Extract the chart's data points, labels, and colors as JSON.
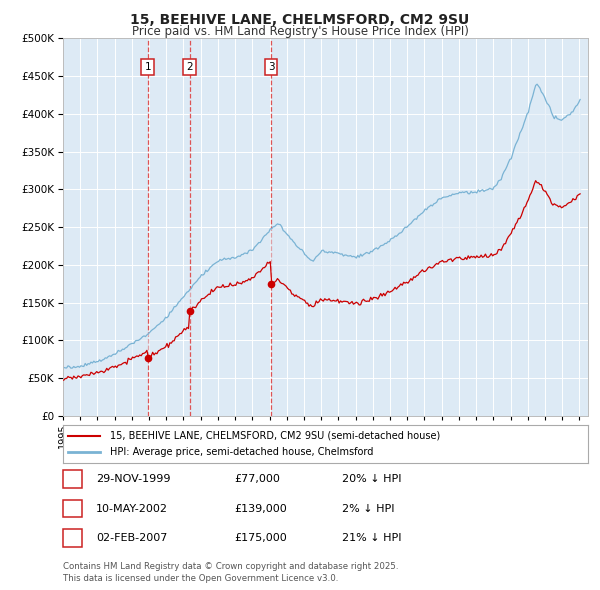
{
  "title": "15, BEEHIVE LANE, CHELMSFORD, CM2 9SU",
  "subtitle": "Price paid vs. HM Land Registry's House Price Index (HPI)",
  "legend_line1": "15, BEEHIVE LANE, CHELMSFORD, CM2 9SU (semi-detached house)",
  "legend_line2": "HPI: Average price, semi-detached house, Chelmsford",
  "footer": "Contains HM Land Registry data © Crown copyright and database right 2025.\nThis data is licensed under the Open Government Licence v3.0.",
  "transactions": [
    {
      "num": 1,
      "date": "29-NOV-1999",
      "price": 77000,
      "hpi_diff": "20% ↓ HPI",
      "year": 1999.917
    },
    {
      "num": 2,
      "date": "10-MAY-2002",
      "price": 139000,
      "hpi_diff": "2% ↓ HPI",
      "year": 2002.36
    },
    {
      "num": 3,
      "date": "02-FEB-2007",
      "price": 175000,
      "hpi_diff": "21% ↓ HPI",
      "year": 2007.09
    }
  ],
  "hpi_color": "#7ab3d4",
  "price_color": "#cc0000",
  "vline_color": "#dd4444",
  "bg_color": "#ddeaf5",
  "grid_color": "#ffffff",
  "marker_border": "#cc2222",
  "ylim": [
    0,
    500000
  ],
  "xlim_start": 1995.0,
  "xlim_end": 2025.5
}
